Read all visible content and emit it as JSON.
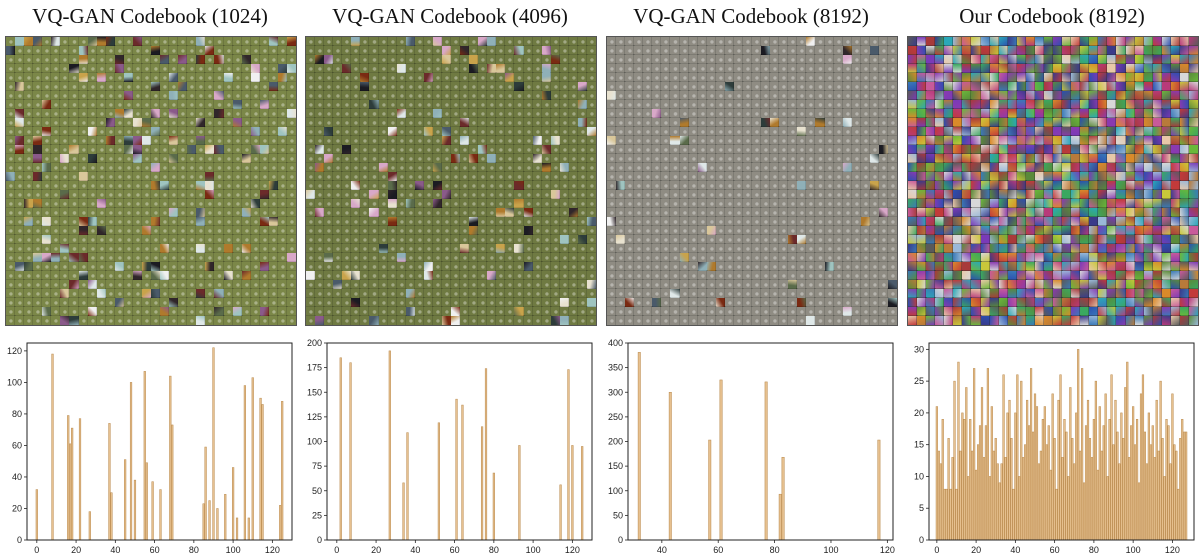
{
  "panels": [
    {
      "title": "VQ-GAN Codebook (1024)",
      "bg": "#7b8748",
      "mode": "sparse",
      "sparsity": 0.16
    },
    {
      "title": "VQ-GAN Codebook (4096)",
      "bg": "#6f7a42",
      "mode": "sparse",
      "sparsity": 0.1
    },
    {
      "title": "VQ-GAN Codebook (8192)",
      "bg": "#8f8c83",
      "mode": "sparse",
      "sparsity": 0.05
    },
    {
      "title": "Our Codebook (8192)",
      "bg": "#6a6a6a",
      "mode": "dense",
      "sparsity": 1.0
    }
  ],
  "chart_data": [
    {
      "type": "bar",
      "xlim": [
        -5,
        130
      ],
      "ylim": [
        0,
        125
      ],
      "xticks": [
        0,
        20,
        40,
        60,
        80,
        100,
        120
      ],
      "yticks": [
        0,
        20,
        40,
        60,
        80,
        100,
        120
      ],
      "bar_color": "#e6c08f",
      "x": [
        0,
        8,
        16,
        17,
        18,
        22,
        27,
        37,
        38,
        45,
        48,
        50,
        55,
        56,
        59,
        63,
        68,
        69,
        85,
        86,
        88,
        90,
        92,
        96,
        100,
        102,
        106,
        108,
        110,
        114,
        115,
        124,
        125
      ],
      "values": [
        32,
        118,
        79,
        61,
        71,
        77,
        18,
        74,
        30,
        51,
        100,
        38,
        107,
        49,
        37,
        32,
        104,
        73,
        23,
        59,
        25,
        122,
        20,
        29,
        46,
        14,
        98,
        14,
        103,
        90,
        86,
        22,
        88
      ]
    },
    {
      "type": "bar",
      "xlim": [
        -5,
        130
      ],
      "ylim": [
        0,
        200
      ],
      "xticks": [
        0,
        20,
        40,
        60,
        80,
        100,
        120
      ],
      "yticks": [
        0,
        25,
        50,
        75,
        100,
        125,
        150,
        175,
        200
      ],
      "bar_color": "#e6c08f",
      "x": [
        2,
        7,
        27,
        34,
        36,
        52,
        61,
        64,
        74,
        76,
        80,
        93,
        114,
        118,
        120,
        125
      ],
      "values": [
        185,
        180,
        192,
        58,
        109,
        119,
        143,
        137,
        115,
        174,
        68,
        96,
        56,
        173,
        96,
        95
      ]
    },
    {
      "type": "bar",
      "xlim": [
        28,
        122
      ],
      "ylim": [
        0,
        400
      ],
      "xticks": [
        40,
        60,
        80,
        100,
        120
      ],
      "yticks": [
        0,
        50,
        100,
        150,
        200,
        250,
        300,
        350,
        400
      ],
      "bar_color": "#e6c08f",
      "x": [
        32,
        43,
        57,
        61,
        77,
        82,
        83,
        117
      ],
      "values": [
        381,
        300,
        203,
        325,
        321,
        93,
        168,
        203
      ]
    },
    {
      "type": "bar",
      "xlim": [
        -4,
        131
      ],
      "ylim": [
        0,
        31
      ],
      "xticks": [
        0,
        20,
        40,
        60,
        80,
        100,
        120
      ],
      "yticks": [
        0,
        5,
        10,
        15,
        20,
        25,
        30
      ],
      "bar_color": "#e6c08f",
      "x": [
        0,
        1,
        2,
        3,
        4,
        5,
        6,
        7,
        8,
        9,
        10,
        11,
        12,
        13,
        14,
        15,
        16,
        17,
        18,
        19,
        20,
        21,
        22,
        23,
        24,
        25,
        26,
        27,
        28,
        29,
        30,
        31,
        32,
        33,
        34,
        35,
        36,
        37,
        38,
        39,
        40,
        41,
        42,
        43,
        44,
        45,
        46,
        47,
        48,
        49,
        50,
        51,
        52,
        53,
        54,
        55,
        56,
        57,
        58,
        59,
        60,
        61,
        62,
        63,
        64,
        65,
        66,
        67,
        68,
        69,
        70,
        71,
        72,
        73,
        74,
        75,
        76,
        77,
        78,
        79,
        80,
        81,
        82,
        83,
        84,
        85,
        86,
        87,
        88,
        89,
        90,
        91,
        92,
        93,
        94,
        95,
        96,
        97,
        98,
        99,
        100,
        101,
        102,
        103,
        104,
        105,
        106,
        107,
        108,
        109,
        110,
        111,
        112,
        113,
        114,
        115,
        116,
        117,
        118,
        119,
        120,
        121,
        122,
        123,
        124,
        125,
        126,
        127
      ],
      "values": [
        21,
        14,
        12,
        19,
        8,
        8,
        16,
        8,
        13,
        25,
        8,
        28,
        14,
        20,
        19,
        24,
        10,
        19,
        14,
        27,
        11,
        15,
        18,
        24,
        13,
        18,
        27,
        10,
        21,
        14,
        16,
        12,
        9,
        12,
        26,
        13,
        20,
        22,
        16,
        8,
        20,
        26,
        10,
        25,
        13,
        15,
        22,
        18,
        27,
        17,
        23,
        21,
        12,
        14,
        19,
        21,
        15,
        18,
        11,
        23,
        16,
        8,
        22,
        26,
        13,
        19,
        17,
        10,
        24,
        16,
        12,
        20,
        30,
        14,
        27,
        9,
        18,
        22,
        16,
        13,
        19,
        25,
        11,
        21,
        14,
        18,
        23,
        10,
        19,
        26,
        15,
        22,
        17,
        12,
        20,
        16,
        24,
        28,
        13,
        18,
        21,
        15,
        19,
        9,
        23,
        26,
        17,
        12,
        20,
        15,
        18,
        13,
        22,
        14,
        25,
        16,
        10,
        19,
        18,
        12,
        23,
        15,
        14,
        8,
        16,
        19,
        17,
        17
      ]
    }
  ]
}
